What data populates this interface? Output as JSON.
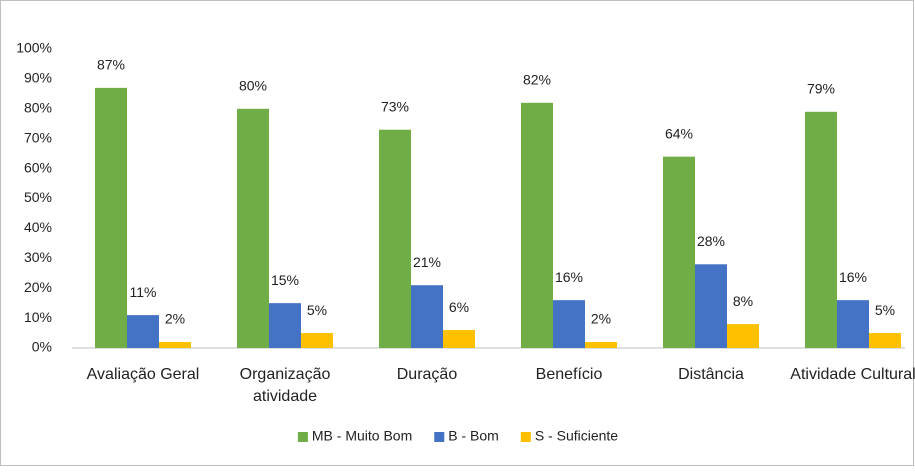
{
  "chart_data": {
    "type": "bar",
    "categories": [
      "Avaliação Geral",
      "Organização atividade",
      "Duração",
      "Benefício",
      "Distância",
      "Atividade Cultural"
    ],
    "series": [
      {
        "name": "MB - Muito Bom",
        "color": "#70ad47",
        "values": [
          87,
          80,
          73,
          82,
          64,
          79
        ],
        "value_labels": [
          "87%",
          "80%",
          "73%",
          "82%",
          "64%",
          "79%"
        ]
      },
      {
        "name": "B - Bom",
        "color": "#4472c4",
        "values": [
          11,
          15,
          21,
          16,
          28,
          16
        ],
        "value_labels": [
          "11%",
          "15%",
          "21%",
          "16%",
          "28%",
          "16%"
        ]
      },
      {
        "name": "S - Suficiente",
        "color": "#ffc000",
        "values": [
          2,
          5,
          6,
          2,
          8,
          5
        ],
        "value_labels": [
          "2%",
          "5%",
          "6%",
          "2%",
          "8%",
          "5%"
        ]
      }
    ],
    "ylim": [
      0,
      100
    ],
    "yticks": [
      {
        "value": 0,
        "label": "0%"
      },
      {
        "value": 10,
        "label": "10%"
      },
      {
        "value": 20,
        "label": "20%"
      },
      {
        "value": 30,
        "label": "30%"
      },
      {
        "value": 40,
        "label": "40%"
      },
      {
        "value": 50,
        "label": "50%"
      },
      {
        "value": 60,
        "label": "60%"
      },
      {
        "value": 70,
        "label": "70%"
      },
      {
        "value": 80,
        "label": "80%"
      },
      {
        "value": 90,
        "label": "90%"
      },
      {
        "value": 100,
        "label": "100%"
      }
    ],
    "grid": false,
    "legend": "bottom"
  }
}
